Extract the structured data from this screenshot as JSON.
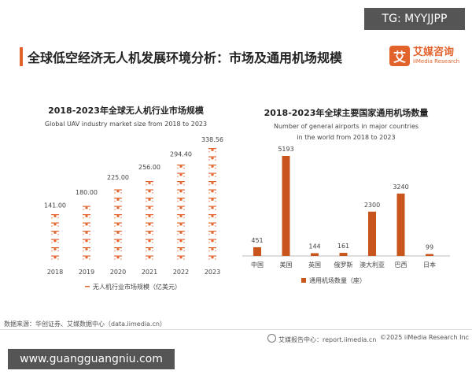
{
  "top_badge": "TG: MYYJJPP",
  "header": {
    "title": "全球低空经济无人机发展环境分析：市场及通用机场规模",
    "logo_mark": "艾",
    "logo_cn": "艾媒咨询",
    "logo_en": "iiMedia Research"
  },
  "colors": {
    "accent": "#e2622c",
    "bar": "#c8551c"
  },
  "chart_data": [
    {
      "type": "bar",
      "title": "2018-2023年全球无人机行业市场规模",
      "subtitle": "Global UAV industry market size from 2018 to 2023",
      "categories": [
        "2018",
        "2019",
        "2020",
        "2021",
        "2022",
        "2023"
      ],
      "values": [
        141.0,
        180.0,
        225.0,
        256.0,
        294.4,
        338.56
      ],
      "value_labels": [
        "141.00",
        "180.00",
        "225.00",
        "256.00",
        "294.40",
        "338.56"
      ],
      "legend": "无人机行业市场规模（亿美元）",
      "icon": "drone-icon",
      "grid": false
    },
    {
      "type": "bar",
      "title": "2018-2023年全球主要国家通用机场数量",
      "subtitle_lines": [
        "Number of general airports in major countries",
        "in the world from 2018 to 2023"
      ],
      "categories": [
        "中国",
        "美国",
        "英国",
        "俄罗斯",
        "澳大利亚",
        "巴西",
        "日本"
      ],
      "values": [
        451,
        5193,
        144,
        161,
        2300,
        3240,
        99
      ],
      "value_labels": [
        "451",
        "5193",
        "144",
        "161",
        "2300",
        "3240",
        "99"
      ],
      "legend": "通用机场数量（座）",
      "grid": false
    }
  ],
  "footer": {
    "source": "数据来源：华创证券、艾媒数据中心（data.iimedia.cn）",
    "report": "艾媒报告中心：report.iimedia.cn",
    "copyright": "©2025 iiMedia Research Inc"
  },
  "bottom_badge": "www.guangguangniu.com"
}
